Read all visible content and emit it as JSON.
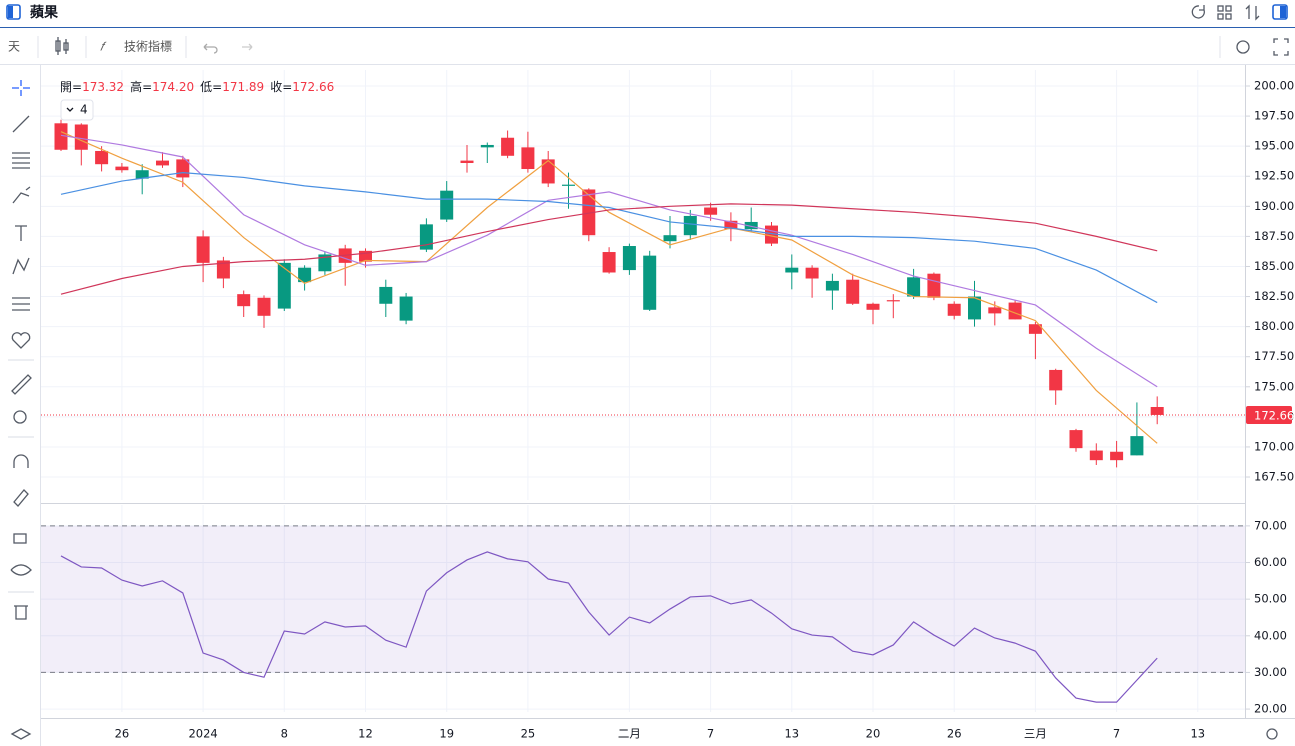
{
  "header": {
    "title": "蘋果"
  },
  "toolbar": {
    "interval": "天",
    "indicators": "技術指標"
  },
  "readout": [
    {
      "label": "開=",
      "value": "173.32"
    },
    {
      "label": "高=",
      "value": "174.20"
    },
    {
      "label": "低=",
      "value": "171.89"
    },
    {
      "label": "收=",
      "value": "172.66"
    }
  ],
  "indicator_count": "4",
  "chart_data": [
    {
      "type": "candlestick",
      "categories": [
        null,
        null,
        null,
        "26",
        null,
        null,
        null,
        "2024",
        null,
        null,
        null,
        "8",
        null,
        null,
        null,
        "12",
        null,
        null,
        null,
        "19",
        null,
        null,
        null,
        "25",
        null,
        null,
        null,
        null,
        "二月",
        null,
        null,
        null,
        "7",
        null,
        null,
        null,
        "13",
        null,
        null,
        null,
        "20",
        null,
        null,
        null,
        "26",
        null,
        null,
        null,
        "三月",
        null,
        null,
        null,
        "7",
        null,
        null,
        null,
        "13"
      ],
      "open": [
        196.9,
        196.8,
        194.6,
        193.3,
        192.3,
        193.8,
        193.9,
        187.5,
        185.5,
        182.7,
        182.4,
        181.5,
        183.7,
        184.6,
        186.5,
        186.3,
        181.9,
        180.5,
        186.4,
        188.9,
        193.8,
        194.9,
        195.7,
        194.9,
        193.9,
        191.7,
        191.4,
        186.2,
        184.7,
        181.4,
        187.1,
        187.6,
        189.9,
        188.8,
        188.1,
        188.4,
        184.5,
        184.9,
        183.0,
        183.9,
        181.9,
        182.2,
        182.5,
        184.4,
        181.9,
        180.6,
        181.6,
        182.0,
        180.2,
        176.4,
        171.4,
        169.7,
        169.6,
        169.3,
        173.32,
        null,
        null
      ],
      "high": [
        197.2,
        196.9,
        195.0,
        193.6,
        193.5,
        194.5,
        194.2,
        188.0,
        185.8,
        183.0,
        182.6,
        185.6,
        185.1,
        186.2,
        186.8,
        186.5,
        183.9,
        182.8,
        189.0,
        192.1,
        195.1,
        195.3,
        196.3,
        196.2,
        194.6,
        192.8,
        191.5,
        186.6,
        186.9,
        186.3,
        189.2,
        189.7,
        190.3,
        189.5,
        189.9,
        188.7,
        186.0,
        185.1,
        184.4,
        184.4,
        182.0,
        182.7,
        184.8,
        184.5,
        182.1,
        183.8,
        182.1,
        182.2,
        180.4,
        176.5,
        171.5,
        170.3,
        170.5,
        173.7,
        174.2,
        null,
        null
      ],
      "low": [
        194.6,
        193.4,
        192.9,
        192.8,
        191.0,
        193.2,
        191.6,
        183.7,
        183.2,
        180.8,
        179.9,
        181.3,
        183.0,
        184.3,
        183.4,
        184.9,
        180.8,
        180.2,
        186.2,
        188.7,
        192.8,
        193.6,
        194.0,
        192.8,
        191.6,
        189.8,
        187.1,
        184.4,
        184.3,
        181.3,
        186.5,
        187.2,
        188.8,
        187.1,
        187.9,
        186.7,
        183.1,
        182.4,
        181.4,
        181.8,
        180.2,
        180.7,
        182.3,
        182.2,
        180.6,
        180.0,
        180.1,
        180.6,
        177.3,
        173.5,
        169.6,
        168.5,
        168.3,
        169.3,
        171.89,
        null,
        null
      ],
      "close": [
        194.7,
        194.7,
        193.5,
        193.0,
        193.0,
        193.4,
        192.4,
        185.3,
        184.0,
        181.7,
        180.9,
        185.3,
        184.9,
        186.0,
        185.3,
        185.4,
        183.3,
        182.5,
        188.5,
        191.3,
        193.6,
        195.1,
        194.2,
        193.1,
        191.9,
        191.8,
        187.6,
        184.5,
        186.7,
        185.9,
        187.6,
        189.2,
        189.3,
        188.1,
        188.7,
        186.9,
        184.9,
        184.0,
        183.8,
        181.9,
        181.4,
        182.1,
        184.1,
        182.4,
        180.9,
        182.5,
        181.1,
        180.6,
        179.4,
        174.7,
        169.9,
        168.9,
        168.9,
        170.9,
        172.66,
        null,
        null
      ],
      "up_color": "#089981",
      "down_color": "#f23645",
      "series": [
        {
          "color": "#f0a040",
          "x": [
            0,
            3,
            6,
            9,
            12,
            15,
            18,
            21,
            24,
            27,
            30,
            33,
            36,
            39,
            42,
            45,
            48,
            51,
            54
          ],
          "values": [
            196.2,
            194.0,
            192.0,
            187.4,
            183.6,
            185.5,
            185.4,
            189.9,
            193.8,
            189.5,
            186.8,
            188.2,
            187.2,
            184.3,
            182.5,
            182.4,
            180.5,
            174.7,
            170.3
          ]
        },
        {
          "color": "#b07ae0",
          "x": [
            0,
            3,
            6,
            9,
            12,
            15,
            18,
            21,
            24,
            27,
            30,
            33,
            36,
            39,
            42,
            45,
            48,
            51,
            54
          ],
          "values": [
            195.9,
            195.1,
            194.1,
            189.3,
            186.8,
            185.1,
            185.4,
            187.6,
            190.5,
            191.2,
            189.7,
            188.7,
            187.6,
            186.0,
            184.2,
            183.0,
            181.8,
            178.2,
            175.0
          ]
        },
        {
          "color": "#4a90e2",
          "x": [
            0,
            3,
            6,
            9,
            12,
            15,
            18,
            21,
            24,
            27,
            30,
            33,
            36,
            39,
            42,
            45,
            48,
            51,
            54
          ],
          "values": [
            191.0,
            192.1,
            192.8,
            192.4,
            191.7,
            191.2,
            190.6,
            190.6,
            190.4,
            189.9,
            188.7,
            188.2,
            187.5,
            187.5,
            187.4,
            187.1,
            186.5,
            184.7,
            182.0
          ]
        },
        {
          "color": "#d0365a",
          "x": [
            0,
            3,
            6,
            9,
            12,
            15,
            18,
            21,
            24,
            27,
            30,
            33,
            36,
            39,
            42,
            45,
            48,
            51,
            54
          ],
          "values": [
            182.7,
            184.0,
            185.0,
            185.4,
            185.6,
            186.1,
            186.8,
            187.9,
            188.9,
            189.7,
            190.0,
            190.2,
            190.1,
            189.8,
            189.5,
            189.1,
            188.6,
            187.5,
            186.3
          ]
        }
      ],
      "ylim": [
        165.59,
        201.33
      ],
      "yticks": [
        {
          "value": 200,
          "label": "200.00"
        },
        {
          "value": 197.5,
          "label": "197.50"
        },
        {
          "value": 195,
          "label": "195.00"
        },
        {
          "value": 192.5,
          "label": "192.50"
        },
        {
          "value": 190,
          "label": "190.00"
        },
        {
          "value": 187.5,
          "label": "187.50"
        },
        {
          "value": 185,
          "label": "185.00"
        },
        {
          "value": 182.5,
          "label": "182.50"
        },
        {
          "value": 180,
          "label": "180.00"
        },
        {
          "value": 177.5,
          "label": "177.50"
        },
        {
          "value": 175,
          "label": "175.00"
        },
        {
          "value": 172.5,
          "label": "172.50"
        },
        {
          "value": 170,
          "label": "170.00"
        },
        {
          "value": 167.5,
          "label": "167.50"
        }
      ],
      "grid": true
    },
    {
      "type": "line",
      "color": "#7e57c2",
      "values": [
        61.8,
        58.8,
        58.5,
        55.2,
        53.6,
        55.0,
        51.7,
        35.3,
        33.4,
        30.0,
        28.7,
        41.3,
        40.5,
        43.8,
        42.4,
        42.7,
        38.8,
        36.9,
        52.2,
        57.2,
        60.7,
        62.9,
        61.0,
        60.2,
        55.5,
        54.4,
        46.5,
        40.2,
        45.1,
        43.5,
        47.3,
        50.6,
        50.9,
        48.7,
        49.8,
        46.2,
        41.9,
        40.2,
        39.7,
        35.8,
        34.8,
        37.5,
        43.8,
        40.2,
        37.2,
        42.1,
        39.4,
        38.0,
        35.8,
        28.5,
        23.0,
        21.9,
        21.9,
        27.9,
        33.9,
        null,
        null
      ],
      "band": [
        30,
        70
      ],
      "ylim": [
        19.2,
        75.7
      ],
      "yticks": [
        {
          "value": 70,
          "label": "70.00"
        },
        {
          "value": 60,
          "label": "60.00"
        },
        {
          "value": 50,
          "label": "50.00"
        },
        {
          "value": 40,
          "label": "40.00"
        },
        {
          "value": 30,
          "label": "30.00"
        },
        {
          "value": 20,
          "label": "20.00"
        }
      ],
      "grid": true
    }
  ]
}
